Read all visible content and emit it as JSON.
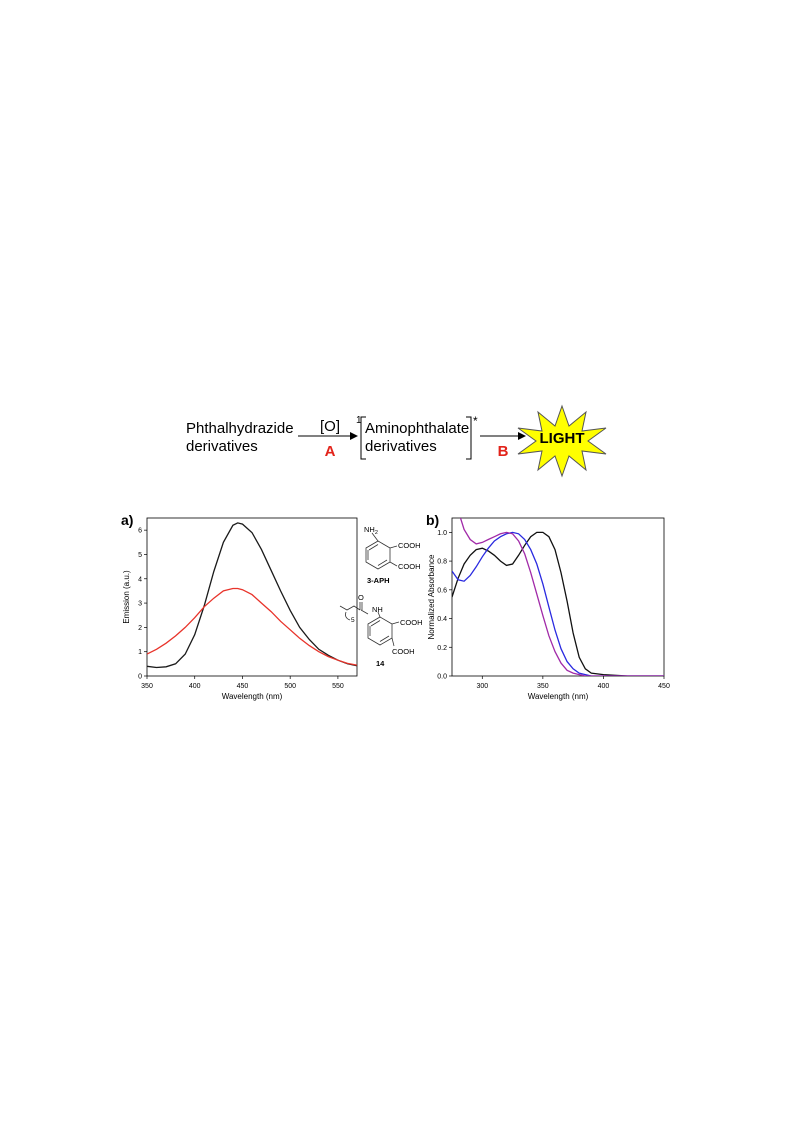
{
  "scheme": {
    "reactant_line1": "Phthalhydrazide",
    "reactant_line2": "derivatives",
    "oxidant": "[O]",
    "step_a": "A",
    "singlet_superscript": "1",
    "product_line1": "Aminophthalate",
    "product_line2": "derivatives",
    "excited_superscript": "*",
    "step_b": "B",
    "light_label": "LIGHT",
    "burst_color": "#ffff00",
    "step_color": "#e2231a"
  },
  "structures": {
    "aph_nh2": "NH",
    "aph_nh2_sub": "2",
    "aph_cooh_top": "COOH",
    "aph_cooh_bottom": "COOH",
    "aph_name": "3-APH",
    "c14_o": "O",
    "c14_nh": "NH",
    "c14_sub": "5",
    "c14_cooh_top": "COOH",
    "c14_cooh_bottom": "COOH",
    "c14_name": "14"
  },
  "chart_data": [
    {
      "type": "line",
      "panel_label": "a)",
      "xlabel": "Wavelength (nm)",
      "ylabel": "Emission (a.u.)",
      "xlim": [
        350,
        570
      ],
      "ylim": [
        0,
        6.5
      ],
      "xticks": [
        350,
        400,
        450,
        500,
        550
      ],
      "yticks": [
        0,
        1,
        2,
        3,
        4,
        5,
        6
      ],
      "grid": false,
      "series": [
        {
          "color": "#1a1a1a",
          "x": [
            350,
            360,
            370,
            380,
            390,
            400,
            410,
            420,
            430,
            440,
            445,
            450,
            460,
            470,
            480,
            490,
            500,
            510,
            520,
            530,
            540,
            550,
            560,
            570
          ],
          "y": [
            0.4,
            0.35,
            0.38,
            0.5,
            0.9,
            1.7,
            2.9,
            4.3,
            5.5,
            6.2,
            6.3,
            6.25,
            5.9,
            5.2,
            4.35,
            3.5,
            2.7,
            2.0,
            1.5,
            1.1,
            0.85,
            0.65,
            0.5,
            0.42
          ]
        },
        {
          "color": "#e8332a",
          "x": [
            350,
            360,
            370,
            380,
            390,
            400,
            410,
            420,
            430,
            440,
            445,
            450,
            460,
            470,
            480,
            490,
            500,
            510,
            520,
            530,
            540,
            550,
            560,
            570
          ],
          "y": [
            0.9,
            1.1,
            1.35,
            1.65,
            2.0,
            2.4,
            2.85,
            3.2,
            3.5,
            3.6,
            3.6,
            3.55,
            3.35,
            3.0,
            2.65,
            2.25,
            1.9,
            1.55,
            1.25,
            1.0,
            0.8,
            0.65,
            0.52,
            0.45
          ]
        }
      ]
    },
    {
      "type": "line",
      "panel_label": "b)",
      "xlabel": "Wavelength (nm)",
      "ylabel": "Normalized Absorbance",
      "xlim": [
        275,
        450
      ],
      "ylim": [
        0,
        1.1
      ],
      "xticks": [
        300,
        350,
        400,
        450
      ],
      "yticks": [
        0.0,
        0.2,
        0.4,
        0.6,
        0.8,
        1.0
      ],
      "ytick_labels": [
        "0.0",
        "0.2",
        "0.4",
        "0.6",
        "0.8",
        "1.0"
      ],
      "grid": false,
      "series": [
        {
          "color": "#111111",
          "x": [
            275,
            280,
            285,
            290,
            295,
            300,
            305,
            310,
            315,
            320,
            325,
            330,
            335,
            340,
            345,
            350,
            355,
            360,
            365,
            370,
            375,
            380,
            385,
            390,
            400,
            420,
            450
          ],
          "y": [
            0.55,
            0.68,
            0.78,
            0.84,
            0.88,
            0.89,
            0.87,
            0.84,
            0.8,
            0.77,
            0.78,
            0.84,
            0.91,
            0.97,
            1.0,
            1.0,
            0.97,
            0.88,
            0.72,
            0.52,
            0.3,
            0.13,
            0.05,
            0.02,
            0.01,
            0.0,
            0.0
          ]
        },
        {
          "color": "#2a2ae0",
          "x": [
            275,
            280,
            285,
            290,
            295,
            300,
            305,
            310,
            315,
            320,
            325,
            330,
            335,
            340,
            345,
            350,
            355,
            360,
            365,
            370,
            375,
            380,
            385,
            390,
            400,
            420,
            450
          ],
          "y": [
            0.73,
            0.67,
            0.66,
            0.7,
            0.76,
            0.83,
            0.89,
            0.94,
            0.97,
            0.99,
            1.0,
            0.99,
            0.95,
            0.88,
            0.78,
            0.64,
            0.48,
            0.32,
            0.19,
            0.1,
            0.05,
            0.02,
            0.01,
            0.0,
            0.0,
            0.0,
            0.0
          ]
        },
        {
          "color": "#a12aa8",
          "x": [
            282,
            285,
            290,
            295,
            300,
            305,
            310,
            315,
            320,
            325,
            330,
            335,
            340,
            345,
            350,
            355,
            360,
            365,
            370,
            375,
            380,
            385,
            390,
            400,
            420,
            450
          ],
          "y": [
            1.1,
            1.02,
            0.95,
            0.92,
            0.93,
            0.95,
            0.97,
            0.99,
            1.0,
            0.99,
            0.94,
            0.85,
            0.72,
            0.57,
            0.42,
            0.28,
            0.17,
            0.09,
            0.04,
            0.02,
            0.01,
            0.0,
            0.0,
            0.0,
            0.0,
            0.0
          ]
        }
      ]
    }
  ]
}
